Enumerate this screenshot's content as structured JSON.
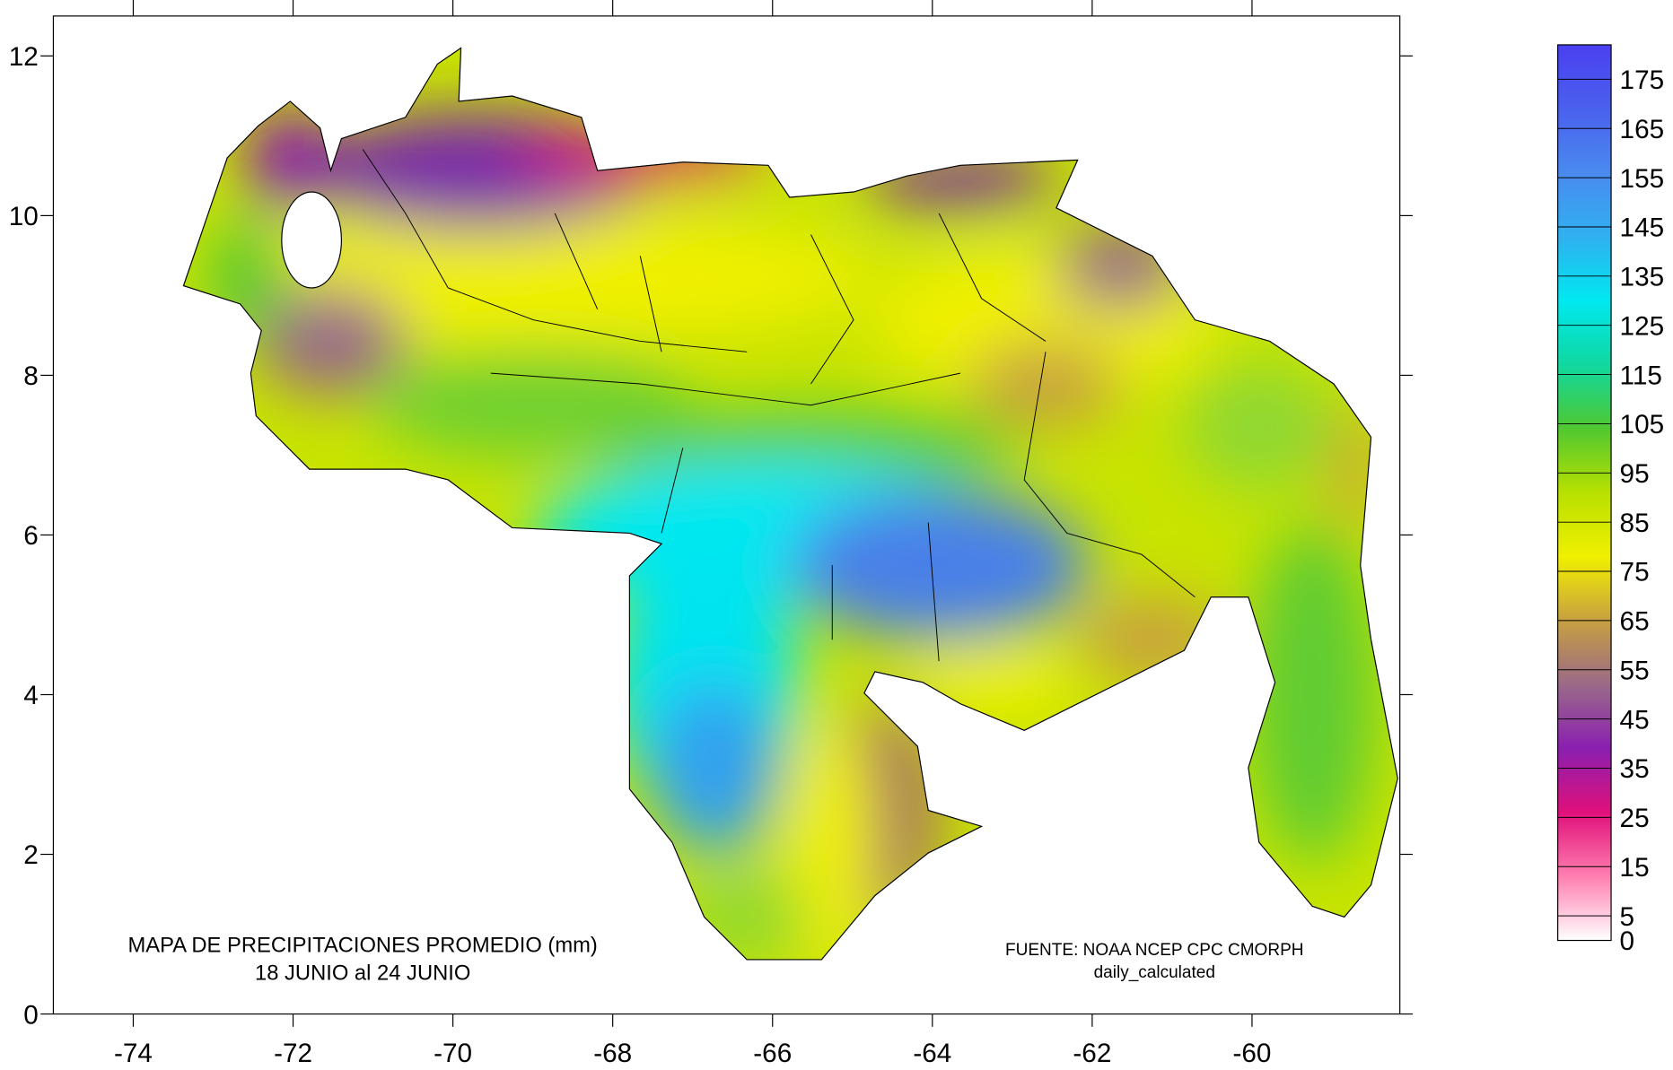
{
  "map": {
    "xlim": [
      -75,
      -58.15
    ],
    "ylim": [
      0,
      12.5
    ],
    "xticks": [
      -74,
      -72,
      -70,
      -68,
      -66,
      -64,
      -62,
      -60
    ],
    "yticks": [
      0,
      2,
      4,
      6,
      8,
      10,
      12
    ],
    "title": "MAPA DE PRECIPITACIONES PROMEDIO (mm)",
    "period": "18  JUNIO al 24  JUNIO",
    "source": "FUENTE: NOAA NCEP CPC CMORPH",
    "source_note": "daily_calculated"
  },
  "colorbar": {
    "range": [
      0,
      182
    ],
    "labels": [
      0,
      5,
      15,
      25,
      35,
      45,
      55,
      65,
      75,
      85,
      95,
      105,
      115,
      125,
      135,
      145,
      155,
      165,
      175
    ],
    "colors": [
      "#ffffff",
      "#ff7fb0",
      "#e0107a",
      "#8a1fb0",
      "#9a6a88",
      "#c8a040",
      "#f0f000",
      "#b8e000",
      "#50c830",
      "#10d8a0",
      "#00e8f0",
      "#30b0f0",
      "#4a8aef",
      "#4a60ee",
      "#4a40f0"
    ]
  }
}
